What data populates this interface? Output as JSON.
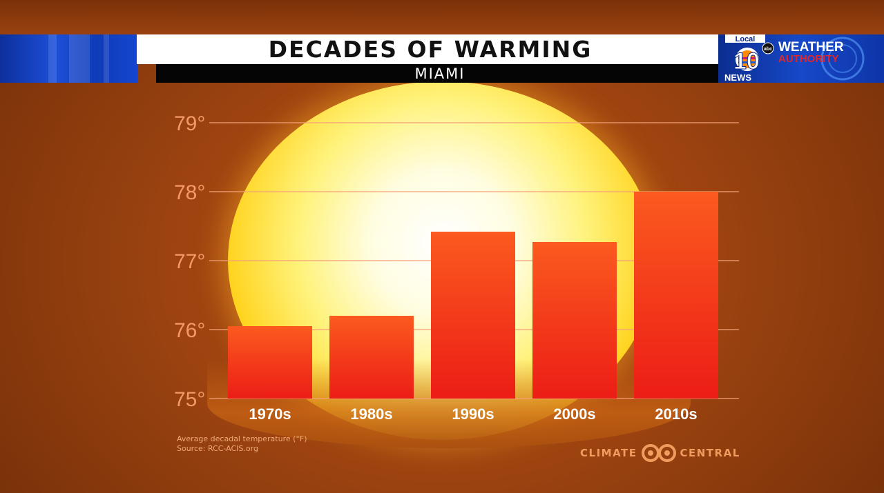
{
  "header": {
    "title": "DECADES OF WARMING",
    "subtitle": "MIAMI"
  },
  "station": {
    "local_label": "Local",
    "number": "10",
    "news_label": "NEWS",
    "network": "abc",
    "brand_line1": "WEATHER",
    "brand_line2": "AUTHORITY"
  },
  "footnote": {
    "line1": "Average decadal temperature (°F)",
    "line2": "Source: RCC-ACIS.org"
  },
  "branding": {
    "left_word": "CLIMATE",
    "right_word": "CENTRAL"
  },
  "colors": {
    "bar_top": "#fb5a1f",
    "bar_bottom": "#ec1d16",
    "gridline": "#f4a17a",
    "tick_label": "#f39a67",
    "category_label": "#ffffff",
    "accent_blue": "#1446d0"
  },
  "chart_data": {
    "type": "bar",
    "title": "DECADES OF WARMING",
    "subtitle": "MIAMI",
    "categories": [
      "1970s",
      "1980s",
      "1990s",
      "2000s",
      "2010s"
    ],
    "values": [
      76.05,
      76.2,
      77.42,
      77.27,
      78.0
    ],
    "ylim": [
      75,
      79
    ],
    "yticks": [
      75,
      76,
      77,
      78,
      79
    ],
    "ytick_labels": [
      "75°",
      "76°",
      "77°",
      "78°",
      "79°"
    ],
    "xlabel": "",
    "ylabel": "",
    "grid": true,
    "legend": "none"
  }
}
